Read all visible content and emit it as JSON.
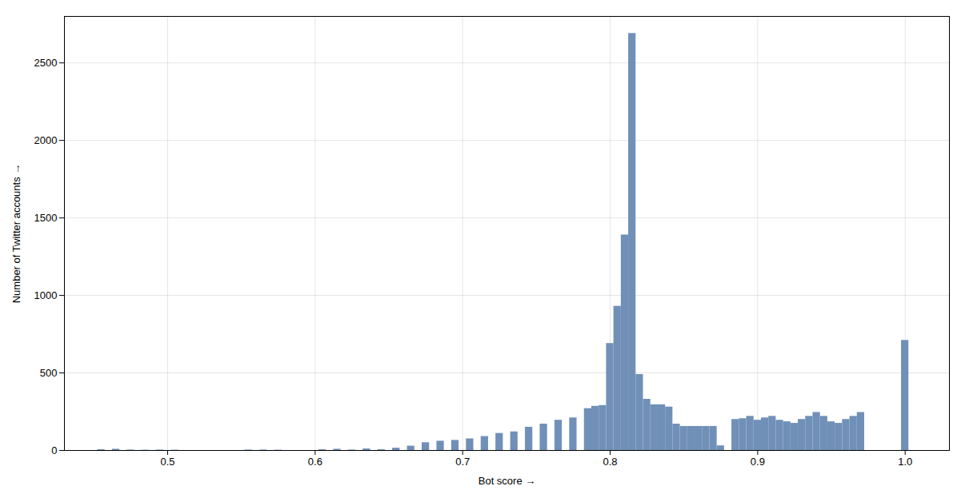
{
  "chart_data": {
    "type": "bar",
    "xlabel": "Bot score",
    "ylabel": "Number of Twitter accounts",
    "color": "#7090b8",
    "xlim": [
      0.43,
      1.03
    ],
    "ylim": [
      0,
      2800
    ],
    "xticks": [
      0.5,
      0.6,
      0.7,
      0.8,
      0.9,
      {
        "value": 1.0,
        "label": "1.0"
      }
    ],
    "yticks": [
      0,
      500,
      1000,
      1500,
      2000,
      2500
    ],
    "grid": true,
    "x": [
      0.455,
      0.465,
      0.475,
      0.485,
      0.495,
      0.505,
      0.555,
      0.565,
      0.575,
      0.605,
      0.615,
      0.625,
      0.635,
      0.645,
      0.655,
      0.665,
      0.675,
      0.685,
      0.695,
      0.705,
      0.715,
      0.725,
      0.735,
      0.745,
      0.755,
      0.765,
      0.775,
      0.785,
      0.79,
      0.795,
      0.8,
      0.805,
      0.81,
      0.815,
      0.82,
      0.825,
      0.83,
      0.835,
      0.84,
      0.845,
      0.85,
      0.855,
      0.86,
      0.865,
      0.87,
      0.875,
      0.885,
      0.89,
      0.895,
      0.9,
      0.905,
      0.91,
      0.915,
      0.92,
      0.925,
      0.93,
      0.935,
      0.94,
      0.945,
      0.95,
      0.955,
      0.96,
      0.965,
      0.97,
      1.0
    ],
    "values": [
      5,
      8,
      3,
      2,
      3,
      2,
      3,
      3,
      2,
      5,
      8,
      3,
      10,
      5,
      15,
      28,
      50,
      60,
      65,
      75,
      90,
      110,
      120,
      150,
      170,
      195,
      210,
      270,
      285,
      290,
      690,
      930,
      1390,
      2690,
      490,
      330,
      295,
      295,
      280,
      170,
      155,
      155,
      155,
      155,
      155,
      30,
      200,
      205,
      220,
      195,
      210,
      220,
      195,
      185,
      175,
      200,
      220,
      245,
      220,
      185,
      175,
      200,
      220,
      245,
      710
    ]
  }
}
